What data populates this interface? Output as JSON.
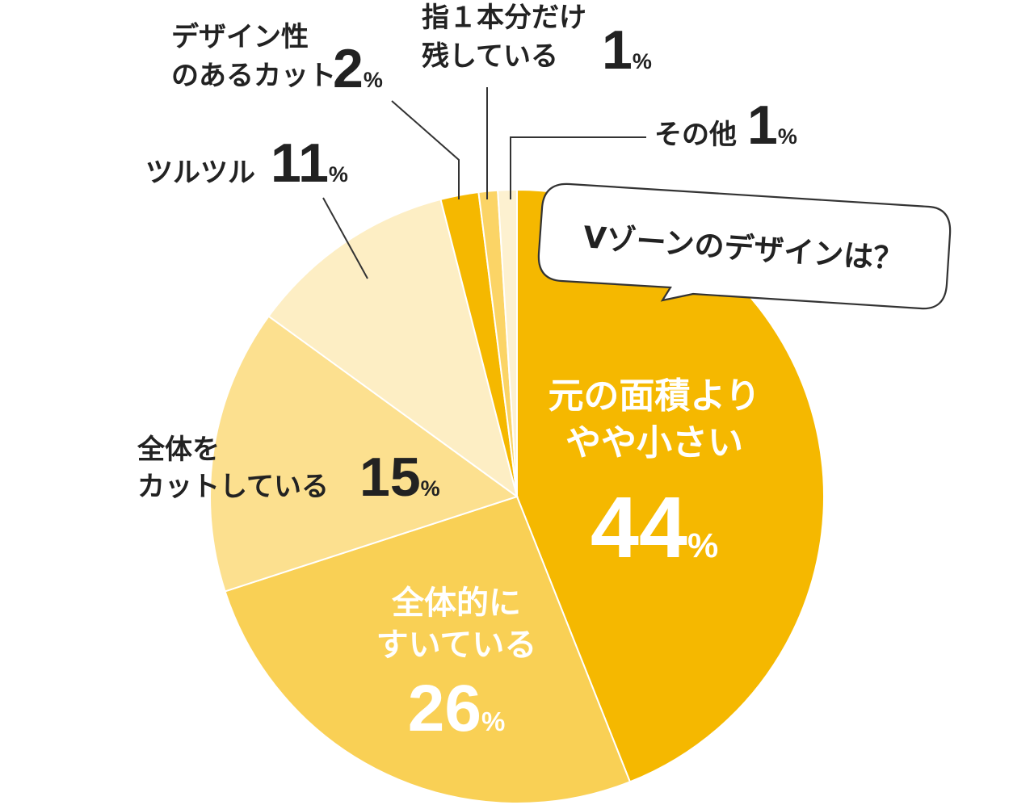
{
  "chart_data": {
    "type": "pie",
    "title": "Vゾーンのデザインは？",
    "slices": [
      {
        "label": [
          "元の面積より",
          "やや小さい"
        ],
        "value": 44,
        "value_text": "44",
        "unit": "%",
        "color": "#f5b800"
      },
      {
        "label": [
          "全体的に",
          "すいている"
        ],
        "value": 26,
        "value_text": "26",
        "unit": "%",
        "color": "#f9d055"
      },
      {
        "label": [
          "全体を",
          "カットしている"
        ],
        "value": 15,
        "value_text": "15",
        "unit": "%",
        "color": "#fce08f"
      },
      {
        "label": [
          "ツルツル"
        ],
        "value": 11,
        "value_text": "11",
        "unit": "%",
        "color": "#fdeec4"
      },
      {
        "label": [
          "デザイン性",
          "のあるカット"
        ],
        "value": 2,
        "value_text": "2",
        "unit": "%",
        "color": "#f5b800"
      },
      {
        "label": [
          "指１本分だけ",
          "残している"
        ],
        "value": 1,
        "value_text": "1",
        "unit": "%",
        "color": "#fbd466"
      },
      {
        "label": [
          "その他"
        ],
        "value": 1,
        "value_text": "1",
        "unit": "%",
        "color": "#fdf1d0"
      }
    ]
  }
}
